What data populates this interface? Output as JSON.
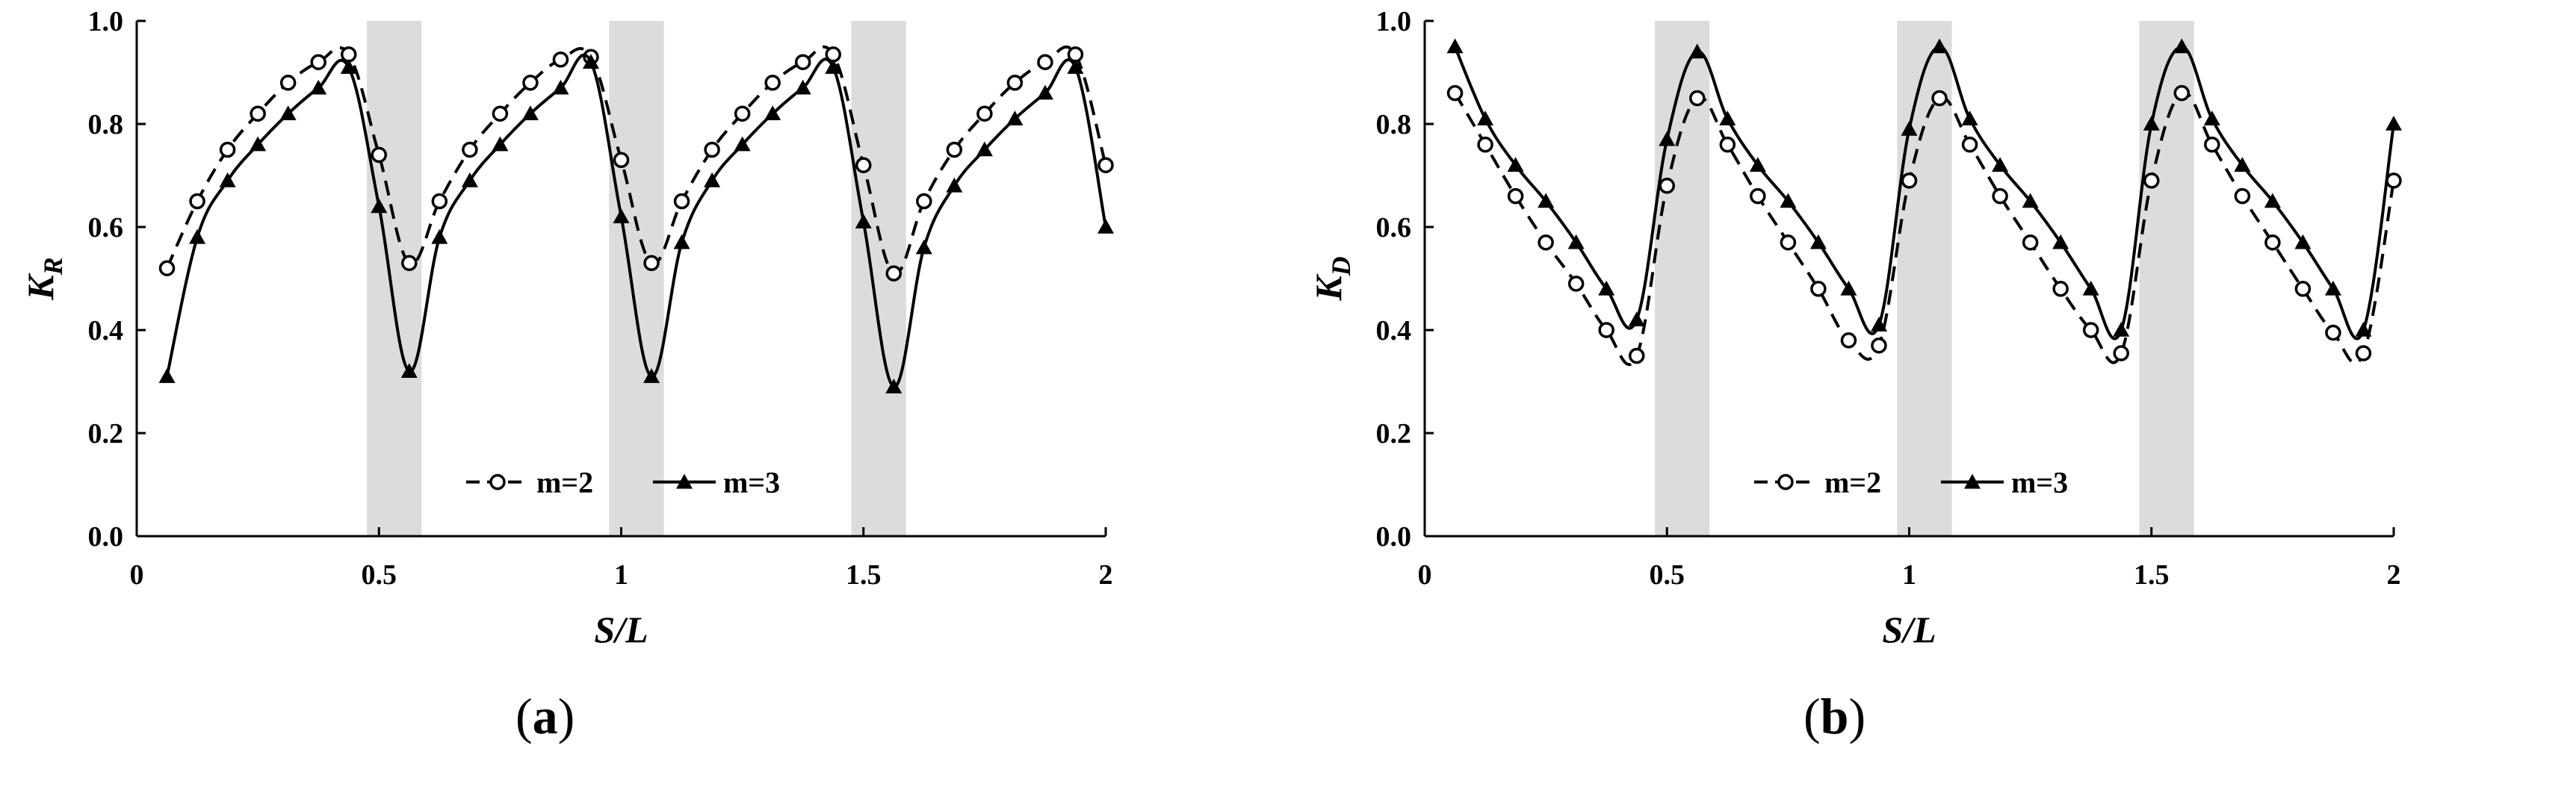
{
  "captions": {
    "a_open": "(",
    "a_letter": "a",
    "a_close": ")",
    "b_open": "(",
    "b_letter": "b",
    "b_close": ")"
  },
  "chart_data": [
    {
      "type": "line",
      "panel": "a",
      "xlabel": "S/L",
      "ylabel": "K_R",
      "ylabel_main": "K",
      "ylabel_sub": "R",
      "xlim": [
        0,
        2
      ],
      "ylim": [
        0,
        1.0
      ],
      "xticks": [
        "0",
        "0.5",
        "1",
        "1.5",
        "2"
      ],
      "xtick_values": [
        0,
        0.5,
        1,
        1.5,
        2
      ],
      "yticks": [
        "0.0",
        "0.2",
        "0.4",
        "0.6",
        "0.8",
        "1.0"
      ],
      "ytick_values": [
        0,
        0.2,
        0.4,
        0.6,
        0.8,
        1.0
      ],
      "grid": false,
      "legend_position": "bottom-center",
      "shaded_bands": [
        [
          0.475,
          0.588
        ],
        [
          0.975,
          1.088
        ],
        [
          1.475,
          1.588
        ]
      ],
      "series": [
        {
          "name": "m=2",
          "style": "dashed",
          "marker": "open-circle",
          "x": [
            0.0625,
            0.125,
            0.1875,
            0.25,
            0.3125,
            0.375,
            0.4375,
            0.5,
            0.5625,
            0.625,
            0.6875,
            0.75,
            0.8125,
            0.875,
            0.9375,
            1.0,
            1.0625,
            1.125,
            1.1875,
            1.25,
            1.3125,
            1.375,
            1.4375,
            1.5,
            1.5625,
            1.625,
            1.6875,
            1.75,
            1.8125,
            1.875,
            1.9375,
            2.0
          ],
          "y": [
            0.52,
            0.65,
            0.75,
            0.82,
            0.88,
            0.92,
            0.935,
            0.74,
            0.53,
            0.65,
            0.75,
            0.82,
            0.88,
            0.925,
            0.93,
            0.73,
            0.53,
            0.65,
            0.75,
            0.82,
            0.88,
            0.92,
            0.935,
            0.72,
            0.51,
            0.65,
            0.75,
            0.82,
            0.88,
            0.92,
            0.935,
            0.72
          ]
        },
        {
          "name": "m=3",
          "style": "solid",
          "marker": "filled-triangle",
          "x": [
            0.0625,
            0.125,
            0.1875,
            0.25,
            0.3125,
            0.375,
            0.4375,
            0.5,
            0.5625,
            0.625,
            0.6875,
            0.75,
            0.8125,
            0.875,
            0.9375,
            1.0,
            1.0625,
            1.125,
            1.1875,
            1.25,
            1.3125,
            1.375,
            1.4375,
            1.5,
            1.5625,
            1.625,
            1.6875,
            1.75,
            1.8125,
            1.875,
            1.9375,
            2.0
          ],
          "y": [
            0.31,
            0.58,
            0.69,
            0.76,
            0.82,
            0.87,
            0.91,
            0.64,
            0.32,
            0.58,
            0.69,
            0.76,
            0.82,
            0.87,
            0.92,
            0.62,
            0.31,
            0.57,
            0.69,
            0.76,
            0.82,
            0.87,
            0.91,
            0.61,
            0.29,
            0.56,
            0.68,
            0.75,
            0.81,
            0.86,
            0.91,
            0.6
          ]
        }
      ]
    },
    {
      "type": "line",
      "panel": "b",
      "xlabel": "S/L",
      "ylabel": "K_D",
      "ylabel_main": "K",
      "ylabel_sub": "D",
      "xlim": [
        0,
        2
      ],
      "ylim": [
        0,
        1.0
      ],
      "xticks": [
        "0",
        "0.5",
        "1",
        "1.5",
        "2"
      ],
      "xtick_values": [
        0,
        0.5,
        1,
        1.5,
        2
      ],
      "yticks": [
        "0.0",
        "0.2",
        "0.4",
        "0.6",
        "0.8",
        "1.0"
      ],
      "ytick_values": [
        0,
        0.2,
        0.4,
        0.6,
        0.8,
        1.0
      ],
      "grid": false,
      "legend_position": "bottom-center",
      "shaded_bands": [
        [
          0.475,
          0.588
        ],
        [
          0.975,
          1.088
        ],
        [
          1.475,
          1.588
        ]
      ],
      "series": [
        {
          "name": "m=2",
          "style": "dashed",
          "marker": "open-circle",
          "x": [
            0.0625,
            0.125,
            0.1875,
            0.25,
            0.3125,
            0.375,
            0.4375,
            0.5,
            0.5625,
            0.625,
            0.6875,
            0.75,
            0.8125,
            0.875,
            0.9375,
            1.0,
            1.0625,
            1.125,
            1.1875,
            1.25,
            1.3125,
            1.375,
            1.4375,
            1.5,
            1.5625,
            1.625,
            1.6875,
            1.75,
            1.8125,
            1.875,
            1.9375,
            2.0
          ],
          "y": [
            0.86,
            0.76,
            0.66,
            0.57,
            0.49,
            0.4,
            0.35,
            0.68,
            0.85,
            0.76,
            0.66,
            0.57,
            0.48,
            0.38,
            0.37,
            0.69,
            0.85,
            0.76,
            0.66,
            0.57,
            0.48,
            0.4,
            0.355,
            0.69,
            0.86,
            0.76,
            0.66,
            0.57,
            0.48,
            0.395,
            0.355,
            0.69
          ]
        },
        {
          "name": "m=3",
          "style": "solid",
          "marker": "filled-triangle",
          "x": [
            0.0625,
            0.125,
            0.1875,
            0.25,
            0.3125,
            0.375,
            0.4375,
            0.5,
            0.5625,
            0.625,
            0.6875,
            0.75,
            0.8125,
            0.875,
            0.9375,
            1.0,
            1.0625,
            1.125,
            1.1875,
            1.25,
            1.3125,
            1.375,
            1.4375,
            1.5,
            1.5625,
            1.625,
            1.6875,
            1.75,
            1.8125,
            1.875,
            1.9375,
            2.0
          ],
          "y": [
            0.95,
            0.81,
            0.72,
            0.65,
            0.57,
            0.48,
            0.42,
            0.77,
            0.94,
            0.81,
            0.72,
            0.65,
            0.57,
            0.48,
            0.41,
            0.79,
            0.95,
            0.81,
            0.72,
            0.65,
            0.57,
            0.48,
            0.4,
            0.8,
            0.95,
            0.81,
            0.72,
            0.65,
            0.57,
            0.48,
            0.4,
            0.8
          ]
        }
      ]
    }
  ]
}
